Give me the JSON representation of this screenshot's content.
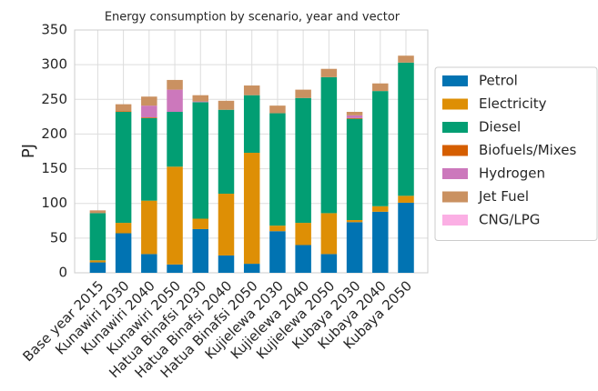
{
  "chart_data": {
    "type": "stacked_bar",
    "title": "Energy consumption by scenario, year and vector",
    "ylabel": "PJ",
    "categories": [
      "Base year 2015",
      "Kunawiri 2030",
      "Kunawiri 2040",
      "Kunawiri 2050",
      "Hatua Binafsi 2030",
      "Hatua Binafsi 2040",
      "Hatua Binafsi 2050",
      "Kujielewa 2030",
      "Kujielewa 2040",
      "Kujielewa 2050",
      "Kubaya 2030",
      "Kubaya 2040",
      "Kubaya 2050"
    ],
    "series": [
      {
        "name": "Petrol",
        "color": "#0173b2",
        "values": [
          15,
          57,
          27,
          12,
          63,
          25,
          13,
          60,
          40,
          27,
          73,
          88,
          101
        ]
      },
      {
        "name": "Electricity",
        "color": "#de8f05",
        "values": [
          3,
          15,
          77,
          141,
          15,
          89,
          160,
          8,
          32,
          59,
          3,
          8,
          10
        ]
      },
      {
        "name": "Diesel",
        "color": "#029e73",
        "values": [
          68,
          160,
          119,
          79,
          168,
          121,
          83,
          162,
          180,
          196,
          146,
          166,
          192
        ]
      },
      {
        "name": "Biofuels/Mixes",
        "color": "#d55e00",
        "values": [
          0,
          1,
          1,
          0,
          0,
          0,
          0,
          0,
          0,
          0,
          1,
          0,
          0
        ]
      },
      {
        "name": "Hydrogen",
        "color": "#cc78bc",
        "values": [
          0,
          0,
          17,
          32,
          1,
          0,
          0,
          0,
          0,
          0,
          4,
          0,
          0
        ]
      },
      {
        "name": "Jet Fuel",
        "color": "#ca9161",
        "values": [
          4,
          10,
          13,
          14,
          9,
          13,
          14,
          11,
          12,
          12,
          5,
          11,
          10
        ]
      },
      {
        "name": "CNG/LPG",
        "color": "#fbafe4",
        "values": [
          0,
          0,
          0,
          0,
          0,
          0,
          0,
          0,
          0,
          0,
          0,
          0,
          0
        ]
      }
    ],
    "ylim": [
      0,
      350
    ],
    "yticks": [
      0,
      50,
      100,
      150,
      200,
      250,
      300,
      350
    ],
    "grid": true,
    "legend": "right"
  }
}
